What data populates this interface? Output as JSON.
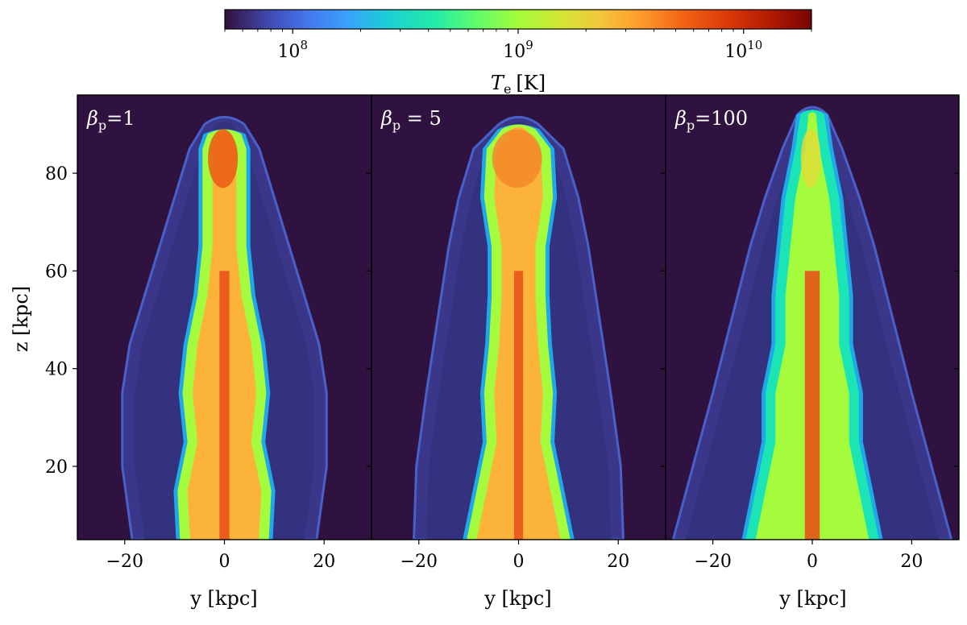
{
  "chart_data": {
    "type": "heatmap",
    "colorbar": {
      "label_var": "T",
      "label_sub": "e",
      "label_unit": "[K]",
      "scale": "log",
      "range": [
        50000000,
        20000000000
      ],
      "colormap": "turbo",
      "ticks": [
        {
          "value": 100000000,
          "base": "10",
          "exp": "8"
        },
        {
          "value": 1000000000,
          "base": "10",
          "exp": "9"
        },
        {
          "value": 10000000000,
          "base": "10",
          "exp": "10"
        }
      ]
    },
    "xlabel": "y [kpc]",
    "ylabel": "z [kpc]",
    "xlim": [
      -29.5,
      29.5
    ],
    "ylim": [
      5,
      96
    ],
    "xticks": [
      -20,
      0,
      20
    ],
    "xtick_labels": [
      "−20",
      "0",
      "20"
    ],
    "yticks": [
      20,
      40,
      60,
      80
    ],
    "ytick_labels": [
      "20",
      "40",
      "60",
      "80"
    ],
    "panels": [
      {
        "greek": "β",
        "sub": "p",
        "text": "=1",
        "cocoon": [
          [
            5,
            18.5
          ],
          [
            20,
            20.5
          ],
          [
            35,
            20.5
          ],
          [
            45,
            19
          ],
          [
            55,
            16
          ],
          [
            65,
            13
          ],
          [
            75,
            10
          ],
          [
            85,
            7
          ],
          [
            90,
            4
          ]
        ],
        "jet": [
          [
            5,
            8.5
          ],
          [
            15,
            9
          ],
          [
            25,
            7
          ],
          [
            35,
            8
          ],
          [
            45,
            7
          ],
          [
            55,
            5
          ],
          [
            65,
            4
          ],
          [
            75,
            4
          ],
          [
            85,
            4
          ],
          [
            88,
            3
          ]
        ],
        "core": 1.0,
        "jet_color": "#fbb33a",
        "tip_color": "#ea5a14",
        "edge_color": "#a4fc3c"
      },
      {
        "greek": "β",
        "sub": "p",
        "text": " = 5",
        "cocoon": [
          [
            5,
            21
          ],
          [
            20,
            20.5
          ],
          [
            35,
            18.5
          ],
          [
            45,
            17
          ],
          [
            55,
            15.5
          ],
          [
            65,
            14
          ],
          [
            75,
            12
          ],
          [
            85,
            9
          ],
          [
            90,
            4
          ]
        ],
        "jet": [
          [
            5,
            10
          ],
          [
            15,
            8
          ],
          [
            25,
            6
          ],
          [
            35,
            6.5
          ],
          [
            45,
            5.5
          ],
          [
            55,
            5
          ],
          [
            65,
            5
          ],
          [
            75,
            6.5
          ],
          [
            85,
            6
          ],
          [
            89,
            3
          ]
        ],
        "core": 0.9,
        "jet_color": "#fbb33a",
        "tip_color": "#f3882a",
        "edge_color": "#a4fc3c"
      },
      {
        "greek": "β",
        "sub": "p",
        "text": "=100",
        "cocoon": [
          [
            5,
            28
          ],
          [
            20,
            24
          ],
          [
            35,
            20
          ],
          [
            45,
            17.5
          ],
          [
            55,
            15
          ],
          [
            65,
            12.5
          ],
          [
            75,
            9.5
          ],
          [
            85,
            6
          ],
          [
            92,
            3
          ]
        ],
        "jet": [
          [
            5,
            13
          ],
          [
            15,
            11
          ],
          [
            25,
            9
          ],
          [
            35,
            9
          ],
          [
            45,
            7
          ],
          [
            55,
            7
          ],
          [
            65,
            6
          ],
          [
            75,
            5
          ],
          [
            85,
            3
          ],
          [
            92,
            2
          ]
        ],
        "core": 1.5,
        "jet_color": "#a4fc3c",
        "tip_color": "#e1dd37",
        "edge_color": "#1be5b5"
      }
    ]
  }
}
